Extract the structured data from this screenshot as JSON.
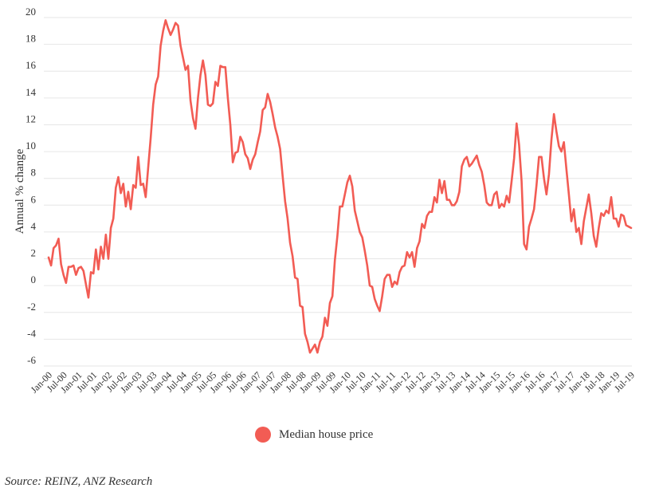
{
  "chart_data": {
    "type": "line",
    "title": "",
    "xlabel": "",
    "ylabel": "Annual % change",
    "ylim": [
      -6,
      20
    ],
    "y_ticks": [
      20,
      18,
      16,
      14,
      12,
      10,
      8,
      6,
      4,
      2,
      0,
      -2,
      -4,
      -6
    ],
    "y_tick_labels": [
      "20",
      "18",
      "16",
      "14",
      "12",
      "10",
      "8",
      "6",
      "4",
      "2",
      "0",
      "-2",
      "-4",
      "-6"
    ],
    "x_tick_labels": [
      "Jan-00",
      "Jul-00",
      "Jan-01",
      "Jul-01",
      "Jan-02",
      "Jul-02",
      "Jan-03",
      "Jul-03",
      "Jan-04",
      "Jul-04",
      "Jan-05",
      "Jul-05",
      "Jan-06",
      "Jul-06",
      "Jan-07",
      "Jul-07",
      "Jan-08",
      "Jul-08",
      "Jan-09",
      "Jul-09",
      "Jan-10",
      "Jul-10",
      "Jan-11",
      "Jul-11",
      "Jan-12",
      "Jul-12",
      "Jan-13",
      "Jul-13",
      "Jan-14",
      "Jul-14",
      "Jan-15",
      "Jul-15",
      "Jan-16",
      "Jul-16",
      "Jan-17",
      "Jul-17",
      "Jan-18",
      "Jul-18",
      "Jan-19",
      "Jul-19"
    ],
    "grid": true,
    "legend_position": "bottom-center",
    "series": [
      {
        "name": "Median house price",
        "color": "#f25c54",
        "x": [
          "Jan-00",
          "Feb-00",
          "Mar-00",
          "Apr-00",
          "May-00",
          "Jun-00",
          "Jul-00",
          "Aug-00",
          "Sep-00",
          "Oct-00",
          "Nov-00",
          "Dec-00",
          "Jan-01",
          "Feb-01",
          "Mar-01",
          "Apr-01",
          "May-01",
          "Jun-01",
          "Jul-01",
          "Aug-01",
          "Sep-01",
          "Oct-01",
          "Nov-01",
          "Dec-01",
          "Jan-02",
          "Feb-02",
          "Mar-02",
          "Apr-02",
          "May-02",
          "Jun-02",
          "Jul-02",
          "Aug-02",
          "Sep-02",
          "Oct-02",
          "Nov-02",
          "Dec-02",
          "Jan-03",
          "Feb-03",
          "Mar-03",
          "Apr-03",
          "May-03",
          "Jun-03",
          "Jul-03",
          "Aug-03",
          "Sep-03",
          "Oct-03",
          "Nov-03",
          "Dec-03",
          "Jan-04",
          "Feb-04",
          "Mar-04",
          "Apr-04",
          "May-04",
          "Jun-04",
          "Jul-04",
          "Aug-04",
          "Sep-04",
          "Oct-04",
          "Nov-04",
          "Dec-04",
          "Jan-05",
          "Feb-05",
          "Mar-05",
          "Apr-05",
          "May-05",
          "Jun-05",
          "Jul-05",
          "Aug-05",
          "Sep-05",
          "Oct-05",
          "Nov-05",
          "Dec-05",
          "Jan-06",
          "Feb-06",
          "Mar-06",
          "Apr-06",
          "May-06",
          "Jun-06",
          "Jul-06",
          "Aug-06",
          "Sep-06",
          "Oct-06",
          "Nov-06",
          "Dec-06",
          "Jan-07",
          "Feb-07",
          "Mar-07",
          "Apr-07",
          "May-07",
          "Jun-07",
          "Jul-07",
          "Aug-07",
          "Sep-07",
          "Oct-07",
          "Nov-07",
          "Dec-07",
          "Jan-08",
          "Feb-08",
          "Mar-08",
          "Apr-08",
          "May-08",
          "Jun-08",
          "Jul-08",
          "Aug-08",
          "Sep-08",
          "Oct-08",
          "Nov-08",
          "Dec-08",
          "Jan-09",
          "Feb-09",
          "Mar-09",
          "Apr-09",
          "May-09",
          "Jun-09",
          "Jul-09",
          "Aug-09",
          "Sep-09",
          "Oct-09",
          "Nov-09",
          "Dec-09",
          "Jan-10",
          "Feb-10",
          "Mar-10",
          "Apr-10",
          "May-10",
          "Jun-10",
          "Jul-10",
          "Aug-10",
          "Sep-10",
          "Oct-10",
          "Nov-10",
          "Dec-10",
          "Jan-11",
          "Feb-11",
          "Mar-11",
          "Apr-11",
          "May-11",
          "Jun-11",
          "Jul-11",
          "Aug-11",
          "Sep-11",
          "Oct-11",
          "Nov-11",
          "Dec-11",
          "Jan-12",
          "Feb-12",
          "Mar-12",
          "Apr-12",
          "May-12",
          "Jun-12",
          "Jul-12",
          "Aug-12",
          "Sep-12",
          "Oct-12",
          "Nov-12",
          "Dec-12",
          "Jan-13",
          "Feb-13",
          "Mar-13",
          "Apr-13",
          "May-13",
          "Jun-13",
          "Jul-13",
          "Aug-13",
          "Sep-13",
          "Oct-13",
          "Nov-13",
          "Dec-13",
          "Jan-14",
          "Feb-14",
          "Mar-14",
          "Apr-14",
          "May-14",
          "Jun-14",
          "Jul-14",
          "Aug-14",
          "Sep-14",
          "Oct-14",
          "Nov-14",
          "Dec-14",
          "Jan-15",
          "Feb-15",
          "Mar-15",
          "Apr-15",
          "May-15",
          "Jun-15",
          "Jul-15",
          "Aug-15",
          "Sep-15",
          "Oct-15",
          "Nov-15",
          "Dec-15",
          "Jan-16",
          "Feb-16",
          "Mar-16",
          "Apr-16",
          "May-16",
          "Jun-16",
          "Jul-16",
          "Aug-16",
          "Sep-16",
          "Oct-16",
          "Nov-16",
          "Dec-16",
          "Jan-17",
          "Feb-17",
          "Mar-17",
          "Apr-17",
          "May-17",
          "Jun-17",
          "Jul-17",
          "Aug-17",
          "Sep-17",
          "Oct-17",
          "Nov-17",
          "Dec-17",
          "Jan-18",
          "Feb-18",
          "Mar-18",
          "Apr-18",
          "May-18",
          "Jun-18",
          "Jul-18",
          "Aug-18",
          "Sep-18",
          "Oct-18",
          "Nov-18",
          "Dec-18",
          "Jan-19",
          "Feb-19",
          "Mar-19",
          "Apr-19",
          "May-19",
          "Jun-19",
          "Jul-19"
        ],
        "values": [
          2.1,
          1.5,
          2.8,
          3.0,
          3.5,
          1.6,
          0.8,
          0.2,
          1.4,
          1.4,
          1.5,
          0.8,
          1.3,
          1.4,
          1.1,
          0.1,
          -0.9,
          1.0,
          0.9,
          2.7,
          1.2,
          2.9,
          2.0,
          3.8,
          2.0,
          4.3,
          5.0,
          7.3,
          8.1,
          6.9,
          7.6,
          5.9,
          7.0,
          5.7,
          7.5,
          7.3,
          9.6,
          7.5,
          7.6,
          6.6,
          8.8,
          11.0,
          13.5,
          15.0,
          15.6,
          17.9,
          19.0,
          19.8,
          19.2,
          18.7,
          19.1,
          19.6,
          19.4,
          17.9,
          17.0,
          16.1,
          16.4,
          13.8,
          12.5,
          11.7,
          14.0,
          15.7,
          16.8,
          15.7,
          13.5,
          13.4,
          13.6,
          15.2,
          14.9,
          16.4,
          16.3,
          16.3,
          14.0,
          12.0,
          9.2,
          9.9,
          10.0,
          11.1,
          10.7,
          9.8,
          9.5,
          8.7,
          9.4,
          9.8,
          10.7,
          11.5,
          13.1,
          13.3,
          14.3,
          13.7,
          12.8,
          11.8,
          11.1,
          10.2,
          8.2,
          6.3,
          5.0,
          3.2,
          2.2,
          0.6,
          0.5,
          -1.5,
          -1.6,
          -3.6,
          -4.2,
          -5.0,
          -4.7,
          -4.4,
          -5.0,
          -4.2,
          -3.8,
          -2.4,
          -3.0,
          -1.3,
          -0.8,
          1.9,
          3.7,
          5.9,
          5.9,
          6.8,
          7.7,
          8.2,
          7.4,
          5.6,
          4.8,
          4.0,
          3.6,
          2.6,
          1.5,
          0.0,
          -0.1,
          -1.0,
          -1.5,
          -1.9,
          -0.8,
          0.5,
          0.8,
          0.8,
          -0.1,
          0.3,
          0.1,
          1.0,
          1.4,
          1.5,
          2.5,
          2.1,
          2.5,
          1.4,
          2.8,
          3.3,
          4.6,
          4.3,
          5.2,
          5.5,
          5.5,
          6.6,
          6.2,
          7.9,
          6.9,
          7.8,
          6.4,
          6.4,
          6.0,
          6.0,
          6.3,
          7.0,
          8.9,
          9.4,
          9.6,
          8.9,
          9.1,
          9.4,
          9.7,
          9.0,
          8.5,
          7.5,
          6.2,
          6.0,
          6.0,
          6.8,
          7.0,
          5.8,
          6.1,
          5.9,
          6.7,
          6.2,
          7.8,
          9.5,
          12.1,
          10.5,
          7.8,
          3.1,
          2.7,
          4.4,
          5.0,
          5.7,
          7.5,
          9.6,
          9.6,
          8.0,
          6.8,
          8.3,
          10.9,
          12.8,
          11.5,
          10.4,
          10.0,
          10.7,
          8.7,
          6.8,
          4.8,
          5.7,
          4.0,
          4.3,
          3.1,
          4.8,
          5.8,
          6.8,
          5.4,
          3.7,
          2.9,
          4.3,
          5.4,
          5.2,
          5.6,
          5.4,
          6.6,
          5.0,
          5.0,
          4.4,
          5.3,
          5.2,
          4.5,
          4.4,
          4.3
        ]
      }
    ]
  },
  "legend": {
    "label": "Median house price",
    "color": "#f25c54"
  },
  "source": "Source: REINZ, ANZ Research"
}
